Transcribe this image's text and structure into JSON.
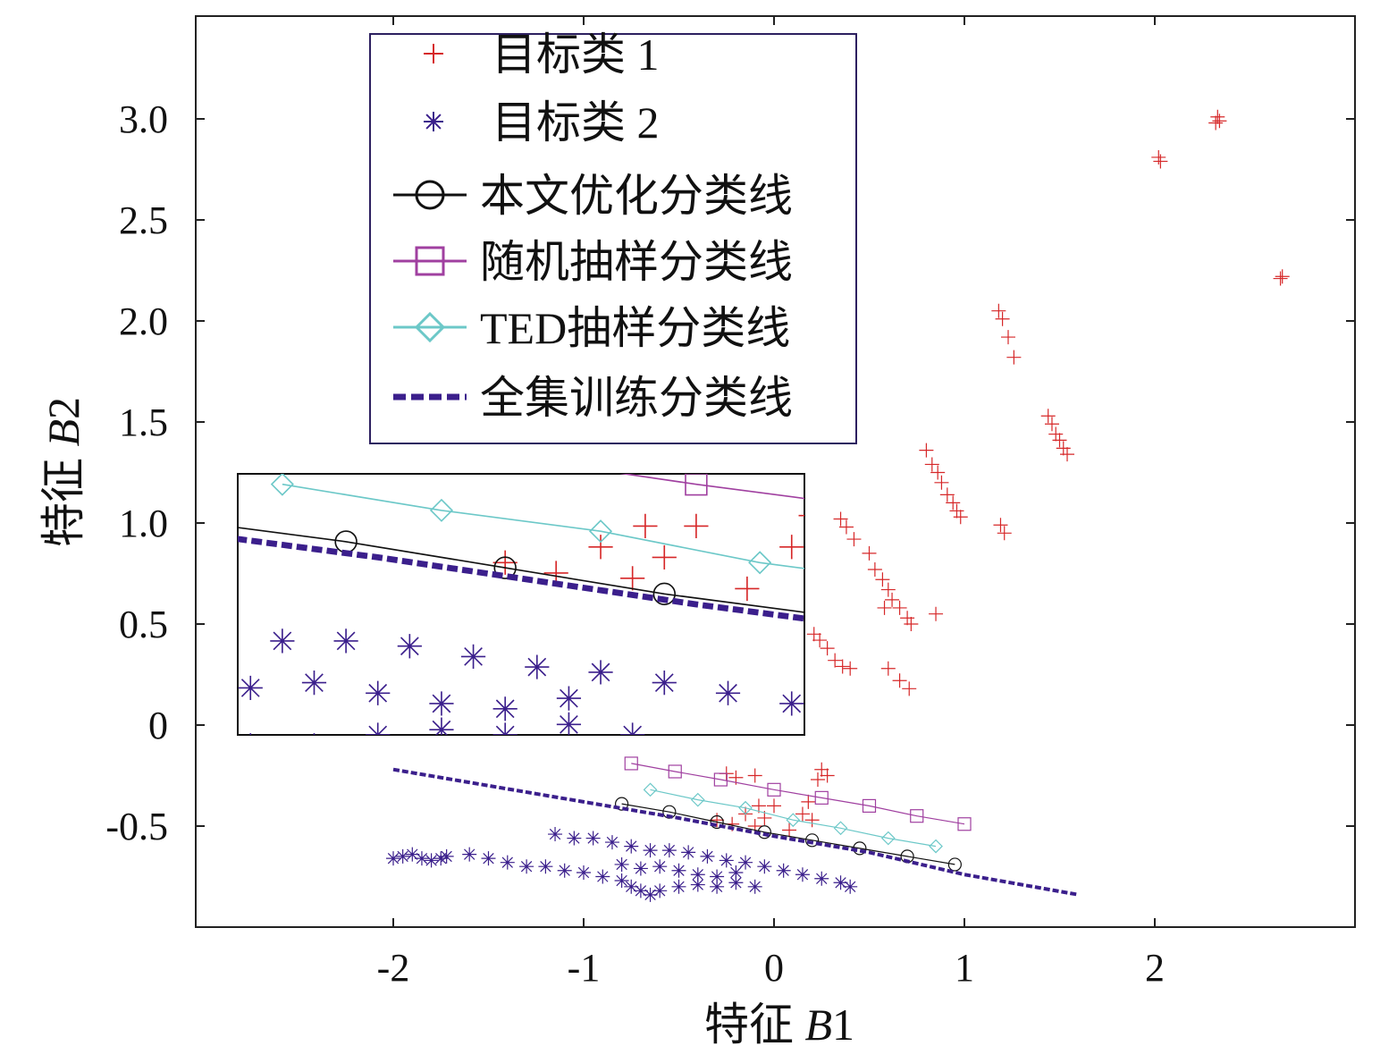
{
  "chart_data": {
    "type": "scatter",
    "xlabel": {
      "prefix": "特征 ",
      "var": "B",
      "sub": "1"
    },
    "ylabel": {
      "prefix": "特征 ",
      "var": "B",
      "sub": "2"
    },
    "xlim": [
      -3.0,
      3.0
    ],
    "ylim": [
      -1.0,
      3.5
    ],
    "xticks": [
      -2,
      -1,
      0,
      1,
      2
    ],
    "xtick_labels": [
      "-2",
      "-1",
      "0",
      "1",
      "2"
    ],
    "yticks": [
      -0.5,
      0,
      0.5,
      1.0,
      1.5,
      2.0,
      2.5,
      3.0
    ],
    "ytick_labels": [
      "-0.5",
      "0",
      "0.5",
      "1.0",
      "1.5",
      "2.0",
      "2.5",
      "3.0"
    ],
    "grid": false,
    "legend_position": "top-center",
    "colors": {
      "class1": "#d62728",
      "class2": "#3b1f8c",
      "optimized": "#111111",
      "random": "#a040a0",
      "ted": "#6cc8c8",
      "full": "#3b1f8c"
    },
    "series": [
      {
        "name": "目标类 1",
        "key": "class1",
        "marker": "plus",
        "points": [
          [
            2.33,
            3.01
          ],
          [
            2.34,
            2.99
          ],
          [
            2.32,
            2.98
          ],
          [
            2.02,
            2.81
          ],
          [
            2.03,
            2.79
          ],
          [
            2.67,
            2.22
          ],
          [
            2.66,
            2.21
          ],
          [
            1.18,
            2.05
          ],
          [
            1.2,
            2.01
          ],
          [
            1.23,
            1.92
          ],
          [
            1.26,
            1.82
          ],
          [
            1.44,
            1.53
          ],
          [
            1.46,
            1.49
          ],
          [
            1.48,
            1.44
          ],
          [
            1.5,
            1.41
          ],
          [
            1.52,
            1.37
          ],
          [
            1.54,
            1.34
          ],
          [
            0.8,
            1.36
          ],
          [
            0.83,
            1.29
          ],
          [
            0.86,
            1.25
          ],
          [
            0.88,
            1.2
          ],
          [
            0.91,
            1.14
          ],
          [
            0.94,
            1.1
          ],
          [
            0.96,
            1.06
          ],
          [
            0.98,
            1.03
          ],
          [
            1.19,
            0.99
          ],
          [
            1.21,
            0.95
          ],
          [
            0.35,
            1.02
          ],
          [
            0.38,
            0.98
          ],
          [
            0.42,
            0.92
          ],
          [
            0.5,
            0.85
          ],
          [
            0.53,
            0.77
          ],
          [
            0.57,
            0.72
          ],
          [
            0.6,
            0.67
          ],
          [
            0.62,
            0.62
          ],
          [
            0.58,
            0.58
          ],
          [
            0.66,
            0.58
          ],
          [
            0.7,
            0.53
          ],
          [
            0.72,
            0.5
          ],
          [
            0.85,
            0.55
          ],
          [
            0.21,
            0.45
          ],
          [
            0.24,
            0.42
          ],
          [
            0.28,
            0.38
          ],
          [
            0.32,
            0.32
          ],
          [
            0.36,
            0.29
          ],
          [
            0.4,
            0.28
          ],
          [
            0.6,
            0.28
          ],
          [
            0.66,
            0.22
          ],
          [
            0.71,
            0.18
          ],
          [
            -0.25,
            -0.24
          ],
          [
            -0.2,
            -0.26
          ],
          [
            -0.1,
            -0.25
          ],
          [
            0.28,
            -0.25
          ],
          [
            0.25,
            -0.22
          ],
          [
            0.23,
            -0.27
          ],
          [
            -0.3,
            -0.47
          ],
          [
            -0.22,
            -0.49
          ],
          [
            -0.15,
            -0.44
          ],
          [
            -0.1,
            -0.5
          ],
          [
            -0.05,
            -0.46
          ],
          [
            0.0,
            -0.4
          ],
          [
            0.08,
            -0.52
          ],
          [
            0.15,
            -0.44
          ],
          [
            0.18,
            -0.38
          ],
          [
            0.2,
            -0.47
          ],
          [
            -0.08,
            -0.4
          ]
        ]
      },
      {
        "name": "目标类 2",
        "key": "class2",
        "marker": "star",
        "points": [
          [
            -2.0,
            -0.66
          ],
          [
            -1.95,
            -0.65
          ],
          [
            -1.9,
            -0.64
          ],
          [
            -1.85,
            -0.66
          ],
          [
            -1.8,
            -0.67
          ],
          [
            -1.75,
            -0.66
          ],
          [
            -1.72,
            -0.65
          ],
          [
            -1.6,
            -0.64
          ],
          [
            -1.5,
            -0.66
          ],
          [
            -1.4,
            -0.68
          ],
          [
            -1.3,
            -0.7
          ],
          [
            -1.2,
            -0.7
          ],
          [
            -1.1,
            -0.72
          ],
          [
            -1.0,
            -0.73
          ],
          [
            -0.9,
            -0.75
          ],
          [
            -0.8,
            -0.77
          ],
          [
            -0.75,
            -0.8
          ],
          [
            -0.7,
            -0.82
          ],
          [
            -0.65,
            -0.84
          ],
          [
            -0.6,
            -0.82
          ],
          [
            -0.5,
            -0.8
          ],
          [
            -0.4,
            -0.79
          ],
          [
            -0.3,
            -0.8
          ],
          [
            -0.2,
            -0.78
          ],
          [
            -0.1,
            -0.8
          ],
          [
            -1.15,
            -0.54
          ],
          [
            -1.05,
            -0.56
          ],
          [
            -0.95,
            -0.56
          ],
          [
            -0.85,
            -0.58
          ],
          [
            -0.75,
            -0.6
          ],
          [
            -0.65,
            -0.62
          ],
          [
            -0.55,
            -0.62
          ],
          [
            -0.45,
            -0.63
          ],
          [
            -0.35,
            -0.65
          ],
          [
            -0.25,
            -0.67
          ],
          [
            -0.15,
            -0.68
          ],
          [
            -0.05,
            -0.7
          ],
          [
            0.05,
            -0.72
          ],
          [
            0.15,
            -0.74
          ],
          [
            0.25,
            -0.76
          ],
          [
            0.35,
            -0.78
          ],
          [
            0.4,
            -0.8
          ],
          [
            -0.8,
            -0.69
          ],
          [
            -0.7,
            -0.71
          ],
          [
            -0.6,
            -0.7
          ],
          [
            -0.5,
            -0.72
          ],
          [
            -0.4,
            -0.74
          ],
          [
            -0.3,
            -0.75
          ],
          [
            -0.2,
            -0.73
          ]
        ]
      },
      {
        "name": "本文优化分类线",
        "key": "optimized",
        "line": "solid",
        "marker": "circle",
        "points": [
          [
            -0.8,
            -0.39
          ],
          [
            -0.55,
            -0.43
          ],
          [
            -0.3,
            -0.48
          ],
          [
            -0.05,
            -0.53
          ],
          [
            0.2,
            -0.57
          ],
          [
            0.45,
            -0.61
          ],
          [
            0.7,
            -0.65
          ],
          [
            0.95,
            -0.69
          ]
        ]
      },
      {
        "name": "随机抽样分类线",
        "key": "random",
        "line": "solid",
        "marker": "square",
        "points": [
          [
            -0.75,
            -0.19
          ],
          [
            -0.52,
            -0.23
          ],
          [
            -0.28,
            -0.27
          ],
          [
            0.0,
            -0.32
          ],
          [
            0.25,
            -0.36
          ],
          [
            0.5,
            -0.4
          ],
          [
            0.75,
            -0.45
          ],
          [
            1.0,
            -0.49
          ]
        ]
      },
      {
        "name": "TED抽样分类线",
        "key": "ted",
        "line": "solid",
        "marker": "diamond",
        "points": [
          [
            -0.65,
            -0.32
          ],
          [
            -0.4,
            -0.37
          ],
          [
            -0.15,
            -0.41
          ],
          [
            0.1,
            -0.47
          ],
          [
            0.35,
            -0.51
          ],
          [
            0.6,
            -0.56
          ],
          [
            0.85,
            -0.6
          ]
        ]
      },
      {
        "name": "全集训练分类线",
        "key": "full",
        "line": "dashed",
        "marker": "none",
        "points": [
          [
            -2.0,
            -0.22
          ],
          [
            -1.5,
            -0.3
          ],
          [
            -1.0,
            -0.38
          ],
          [
            -0.5,
            -0.46
          ],
          [
            0.0,
            -0.55
          ],
          [
            0.5,
            -0.63
          ],
          [
            1.0,
            -0.74
          ],
          [
            1.6,
            -0.84
          ]
        ]
      }
    ],
    "inset": {
      "xlim": [
        -0.72,
        0.17
      ],
      "ylim": [
        -0.8,
        -0.3
      ]
    }
  }
}
